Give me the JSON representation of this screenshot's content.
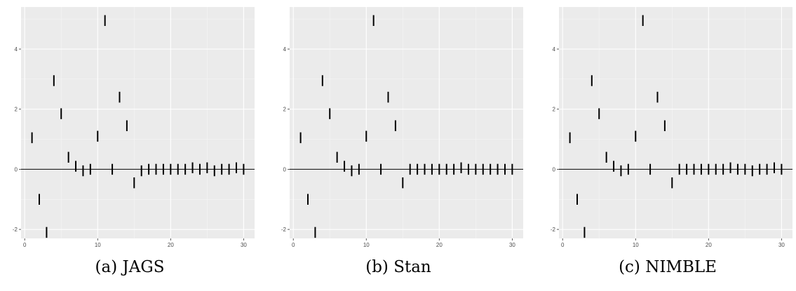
{
  "chart_data": [
    {
      "type": "scatter",
      "marker": "interval",
      "caption": "(a) JAGS",
      "x": [
        1,
        2,
        3,
        4,
        5,
        6,
        7,
        8,
        9,
        10,
        11,
        12,
        13,
        14,
        15,
        16,
        17,
        18,
        19,
        20,
        21,
        22,
        23,
        24,
        25,
        26,
        27,
        28,
        29,
        30
      ],
      "y": [
        1.05,
        -1.0,
        -2.1,
        2.95,
        1.85,
        0.4,
        0.1,
        -0.05,
        0.0,
        1.1,
        4.95,
        0.0,
        2.4,
        1.45,
        -0.45,
        -0.05,
        0.0,
        0.0,
        0.0,
        0.0,
        0.0,
        0.0,
        0.05,
        0.0,
        0.05,
        -0.05,
        0.0,
        0.0,
        0.05,
        0.0
      ],
      "xlim": [
        -0.5,
        31.5
      ],
      "ylim": [
        -2.3,
        5.4
      ],
      "xticks": [
        0,
        10,
        20,
        30
      ],
      "yticks": [
        -2,
        0,
        2,
        4
      ],
      "xtick_labels": [
        "0",
        "10",
        "20",
        "30"
      ],
      "ytick_labels": [
        "-2",
        "0",
        "2",
        "4"
      ],
      "hline": 0,
      "grid": true,
      "title": "",
      "xlabel": "",
      "ylabel": ""
    },
    {
      "type": "scatter",
      "marker": "interval",
      "caption": "(b) Stan",
      "x": [
        1,
        2,
        3,
        4,
        5,
        6,
        7,
        8,
        9,
        10,
        11,
        12,
        13,
        14,
        15,
        16,
        17,
        18,
        19,
        20,
        21,
        22,
        23,
        24,
        25,
        26,
        27,
        28,
        29,
        30
      ],
      "y": [
        1.05,
        -1.0,
        -2.1,
        2.95,
        1.85,
        0.4,
        0.1,
        -0.05,
        0.0,
        1.1,
        4.95,
        0.0,
        2.4,
        1.45,
        -0.45,
        0.0,
        0.0,
        0.0,
        0.0,
        0.0,
        0.0,
        0.0,
        0.05,
        0.0,
        0.0,
        0.0,
        0.0,
        0.0,
        0.0,
        0.0
      ],
      "xlim": [
        -0.5,
        31.5
      ],
      "ylim": [
        -2.3,
        5.4
      ],
      "xticks": [
        0,
        10,
        20,
        30
      ],
      "yticks": [
        -2,
        0,
        2,
        4
      ],
      "xtick_labels": [
        "0",
        "10",
        "20",
        "30"
      ],
      "ytick_labels": [
        "-2",
        "0",
        "2",
        "4"
      ],
      "hline": 0,
      "grid": true,
      "title": "",
      "xlabel": "",
      "ylabel": ""
    },
    {
      "type": "scatter",
      "marker": "interval",
      "caption": "(c) NIMBLE",
      "x": [
        1,
        2,
        3,
        4,
        5,
        6,
        7,
        8,
        9,
        10,
        11,
        12,
        13,
        14,
        15,
        16,
        17,
        18,
        19,
        20,
        21,
        22,
        23,
        24,
        25,
        26,
        27,
        28,
        29,
        30
      ],
      "y": [
        1.05,
        -1.0,
        -2.1,
        2.95,
        1.85,
        0.4,
        0.1,
        -0.05,
        0.0,
        1.1,
        4.95,
        0.0,
        2.4,
        1.45,
        -0.45,
        0.0,
        0.0,
        0.0,
        0.0,
        0.0,
        0.0,
        0.0,
        0.05,
        0.0,
        0.0,
        -0.05,
        0.0,
        0.0,
        0.05,
        0.0
      ],
      "xlim": [
        -0.5,
        31.5
      ],
      "ylim": [
        -2.3,
        5.4
      ],
      "xticks": [
        0,
        10,
        20,
        30
      ],
      "yticks": [
        -2,
        0,
        2,
        4
      ],
      "xtick_labels": [
        "0",
        "10",
        "20",
        "30"
      ],
      "ytick_labels": [
        "-2",
        "0",
        "2",
        "4"
      ],
      "hline": 0,
      "grid": true,
      "title": "",
      "xlabel": "",
      "ylabel": ""
    }
  ],
  "colors": {
    "panel_background": "#ebebeb",
    "grid_major": "#ffffff",
    "grid_minor": "#f5f5f5",
    "mark": "#000000",
    "hline": "#000000",
    "tick_text": "#4d4d4d"
  }
}
